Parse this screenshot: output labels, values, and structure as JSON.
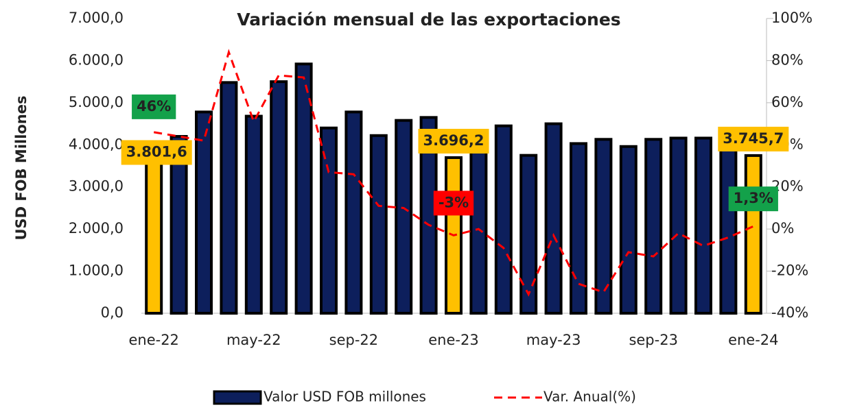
{
  "chart_data": {
    "type": "bar_line",
    "title": "Variación mensual de las exportaciones",
    "y_label": "USD FOB Millones",
    "categories": [
      "ene-22",
      null,
      null,
      null,
      "may-22",
      null,
      null,
      null,
      "sep-22",
      null,
      null,
      null,
      "ene-23",
      null,
      null,
      null,
      "may-23",
      null,
      null,
      null,
      "sep-23",
      null,
      null,
      null,
      "ene-24"
    ],
    "ylim": [
      0,
      7000
    ],
    "yticks": [
      {
        "value": 0,
        "label": "0,0"
      },
      {
        "value": 1000,
        "label": "1.000,0"
      },
      {
        "value": 2000,
        "label": "2.000,0"
      },
      {
        "value": 3000,
        "label": "3.000,0"
      },
      {
        "value": 4000,
        "label": "4.000,0"
      },
      {
        "value": 5000,
        "label": "5.000,0"
      },
      {
        "value": 6000,
        "label": "6.000,0"
      },
      {
        "value": 7000,
        "label": "7.000,0"
      }
    ],
    "y2lim": [
      -40,
      100
    ],
    "y2ticks": [
      {
        "value": -40,
        "label": "-40%"
      },
      {
        "value": -20,
        "label": "-20%"
      },
      {
        "value": 0,
        "label": "0%"
      },
      {
        "value": 20,
        "label": "20%"
      },
      {
        "value": 40,
        "label": "40%"
      },
      {
        "value": 60,
        "label": "60%"
      },
      {
        "value": 80,
        "label": "80%"
      },
      {
        "value": 100,
        "label": "100%"
      }
    ],
    "legend": "bottom",
    "series": [
      {
        "name": "Valor USD FOB millones",
        "kind": "bar",
        "color": "#0d1f5c",
        "colors": [
          "#ffc000",
          "#0d1f5c",
          "#0d1f5c",
          "#0d1f5c",
          "#0d1f5c",
          "#0d1f5c",
          "#0d1f5c",
          "#0d1f5c",
          "#0d1f5c",
          "#0d1f5c",
          "#0d1f5c",
          "#0d1f5c",
          "#ffc000",
          "#0d1f5c",
          "#0d1f5c",
          "#0d1f5c",
          "#0d1f5c",
          "#0d1f5c",
          "#0d1f5c",
          "#0d1f5c",
          "#0d1f5c",
          "#0d1f5c",
          "#0d1f5c",
          "#0d1f5c",
          "#ffc000"
        ],
        "values": [
          3801.6,
          4200,
          4780,
          5480,
          4680,
          5500,
          5920,
          4400,
          4780,
          4220,
          4580,
          4650,
          3696.2,
          4100,
          4450,
          3750,
          4500,
          4030,
          4130,
          3960,
          4130,
          4160,
          4160,
          4000,
          3745.7
        ],
        "value_labels": [
          "3.801,6",
          null,
          null,
          null,
          null,
          null,
          null,
          null,
          null,
          null,
          null,
          null,
          "3.696,2",
          null,
          null,
          null,
          null,
          null,
          null,
          null,
          null,
          null,
          null,
          null,
          "3.745,7"
        ],
        "value_label_color": "#ffc000"
      },
      {
        "name": "Var. Anual(%)",
        "kind": "line",
        "axis": "y2",
        "color": "#ff0000",
        "values": [
          46,
          44,
          42,
          84,
          51,
          73,
          72,
          27,
          26,
          11,
          10,
          2,
          -3,
          0,
          -9,
          -31,
          -3,
          -26,
          -30,
          -11,
          -13,
          -2,
          -8,
          -4,
          1.3
        ],
        "value_labels": [
          "46%",
          null,
          null,
          null,
          null,
          null,
          null,
          null,
          null,
          null,
          null,
          null,
          "-3%",
          null,
          null,
          null,
          null,
          null,
          null,
          null,
          null,
          null,
          null,
          null,
          "1,3%"
        ],
        "value_label_colors": [
          "#13a14a",
          null,
          null,
          null,
          null,
          null,
          null,
          null,
          null,
          null,
          null,
          null,
          "#ff0000",
          null,
          null,
          null,
          null,
          null,
          null,
          null,
          null,
          null,
          null,
          null,
          "#13a14a"
        ]
      }
    ]
  }
}
